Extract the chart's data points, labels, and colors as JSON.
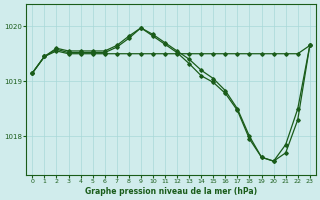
{
  "title": "Graphe pression niveau de la mer (hPa)",
  "background_color": "#d0ecec",
  "grid_color": "#a8d8d8",
  "line_color": "#1a5c1a",
  "xlim": [
    -0.5,
    23.5
  ],
  "ylim": [
    1017.3,
    1020.4
  ],
  "yticks": [
    1018,
    1019,
    1020
  ],
  "xticks": [
    0,
    1,
    2,
    3,
    4,
    5,
    6,
    7,
    8,
    9,
    10,
    11,
    12,
    13,
    14,
    15,
    16,
    17,
    18,
    19,
    20,
    21,
    22,
    23
  ],
  "series1_x": [
    0,
    1,
    2,
    3,
    4,
    5,
    6,
    7,
    8,
    9,
    10,
    11,
    12,
    13,
    14,
    15,
    16,
    17,
    18,
    19,
    20,
    21,
    22,
    23
  ],
  "series1_y": [
    1019.15,
    1019.45,
    1019.55,
    1019.5,
    1019.5,
    1019.5,
    1019.5,
    1019.5,
    1019.5,
    1019.5,
    1019.5,
    1019.5,
    1019.5,
    1019.5,
    1019.5,
    1019.5,
    1019.5,
    1019.5,
    1019.5,
    1019.5,
    1019.5,
    1019.5,
    1019.5,
    1019.65
  ],
  "series2_x": [
    0,
    1,
    2,
    3,
    4,
    5,
    6,
    7,
    8,
    9,
    10,
    11,
    12,
    13,
    14,
    15,
    16,
    17,
    18,
    19,
    20,
    21,
    22,
    23
  ],
  "series2_y": [
    1019.15,
    1019.45,
    1019.58,
    1019.52,
    1019.52,
    1019.52,
    1019.52,
    1019.62,
    1019.78,
    1019.97,
    1019.82,
    1019.67,
    1019.52,
    1019.32,
    1019.1,
    1018.98,
    1018.78,
    1018.47,
    1017.95,
    1017.62,
    1017.55,
    1017.7,
    1018.3,
    1019.65
  ],
  "series3_x": [
    0,
    1,
    2,
    3,
    4,
    5,
    6,
    7,
    8,
    9,
    10,
    11,
    12,
    13,
    14,
    15,
    16,
    17,
    18,
    19,
    20,
    21,
    22,
    23
  ],
  "series3_y": [
    1019.15,
    1019.45,
    1019.6,
    1019.55,
    1019.55,
    1019.55,
    1019.55,
    1019.65,
    1019.82,
    1019.97,
    1019.85,
    1019.7,
    1019.55,
    1019.4,
    1019.2,
    1019.05,
    1018.83,
    1018.5,
    1018.0,
    1017.62,
    1017.55,
    1017.85,
    1018.5,
    1019.65
  ]
}
